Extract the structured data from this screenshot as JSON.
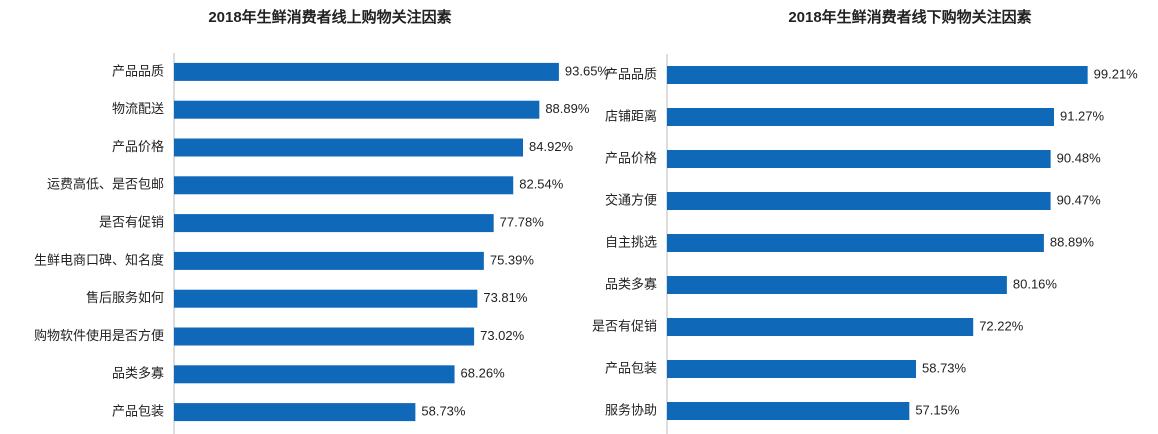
{
  "chart_data": [
    {
      "type": "bar",
      "title": "2018年生鲜消费者线上购物关注因素",
      "color": "#1068b8",
      "categories": [
        "产品品质",
        "物流配送",
        "产品价格",
        "运费高低、是否包邮",
        "是否有促销",
        "生鲜电商口碑、知名度",
        "售后服务如何",
        "购物软件使用是否方便",
        "品类多寡",
        "产品包装"
      ],
      "values": [
        93.65,
        88.89,
        84.92,
        82.54,
        77.78,
        75.39,
        73.81,
        73.02,
        68.26,
        58.73
      ],
      "value_labels": [
        "93.65%",
        "88.89%",
        "84.92%",
        "82.54%",
        "77.78%",
        "75.39%",
        "73.81%",
        "73.02%",
        "68.26%",
        "58.73%"
      ]
    },
    {
      "type": "bar",
      "title": "2018年生鲜消费者线下购物关注因素",
      "color": "#1068b8",
      "categories": [
        "产品品质",
        "店铺距离",
        "产品价格",
        "交通方便",
        "自主挑选",
        "品类多寡",
        "是否有促销",
        "产品包装",
        "服务协助"
      ],
      "values": [
        99.21,
        91.27,
        90.48,
        90.47,
        88.89,
        80.16,
        72.22,
        58.73,
        57.15
      ],
      "value_labels": [
        "99.21%",
        "91.27%",
        "90.48%",
        "90.47%",
        "88.89%",
        "80.16%",
        "72.22%",
        "58.73%",
        "57.15%"
      ]
    }
  ]
}
